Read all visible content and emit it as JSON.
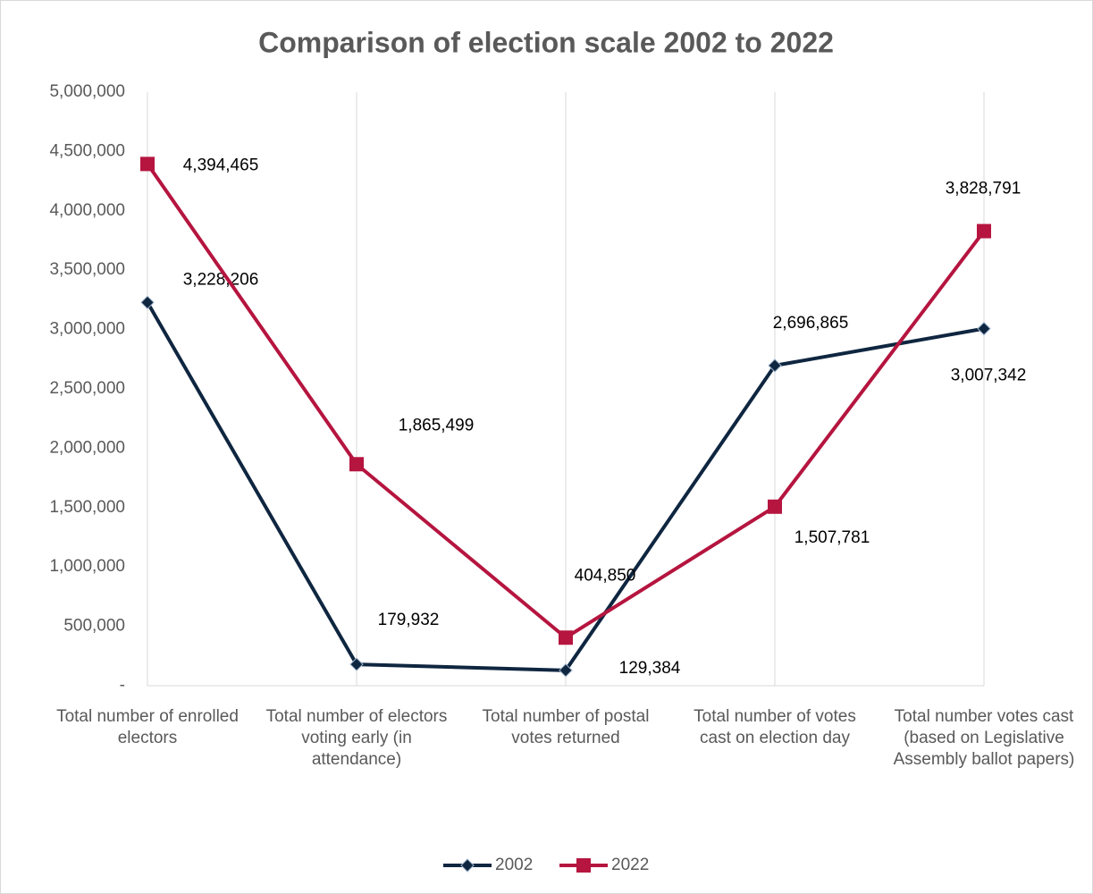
{
  "chart_data": {
    "type": "line",
    "title": "Comparison of election scale 2002 to 2022",
    "categories": [
      "Total number of enrolled electors",
      "Total number of electors voting early (in attendance)",
      "Total number of postal votes returned",
      "Total number of votes cast on election day",
      "Total number votes cast (based on Legislative Assembly ballot papers)"
    ],
    "series": [
      {
        "name": "2002",
        "color": "#0f2640",
        "marker": "diamond",
        "values": [
          3228206,
          179932,
          129384,
          2696865,
          3007342
        ],
        "value_labels": [
          "3,228,206",
          "179,932",
          "129,384",
          "2,696,865",
          "3,007,342"
        ]
      },
      {
        "name": "2022",
        "color": "#b5153f",
        "marker": "square",
        "values": [
          4394465,
          1865499,
          404850,
          1507781,
          3828791
        ],
        "value_labels": [
          "4,394,465",
          "1,865,499",
          "404,850",
          "1,507,781",
          "3,828,791"
        ]
      }
    ],
    "ylim": [
      0,
      5000000
    ],
    "yticks": [
      {
        "value": 0,
        "label": "-"
      },
      {
        "value": 500000,
        "label": "500,000"
      },
      {
        "value": 1000000,
        "label": "1,000,000"
      },
      {
        "value": 1500000,
        "label": "1,500,000"
      },
      {
        "value": 2000000,
        "label": "2,000,000"
      },
      {
        "value": 2500000,
        "label": "2,500,000"
      },
      {
        "value": 3000000,
        "label": "3,000,000"
      },
      {
        "value": 3500000,
        "label": "3,500,000"
      },
      {
        "value": 4000000,
        "label": "4,000,000"
      },
      {
        "value": 4500000,
        "label": "4,500,000"
      },
      {
        "value": 5000000,
        "label": "5,000,000"
      }
    ],
    "grid": true,
    "legend": "bottom"
  }
}
